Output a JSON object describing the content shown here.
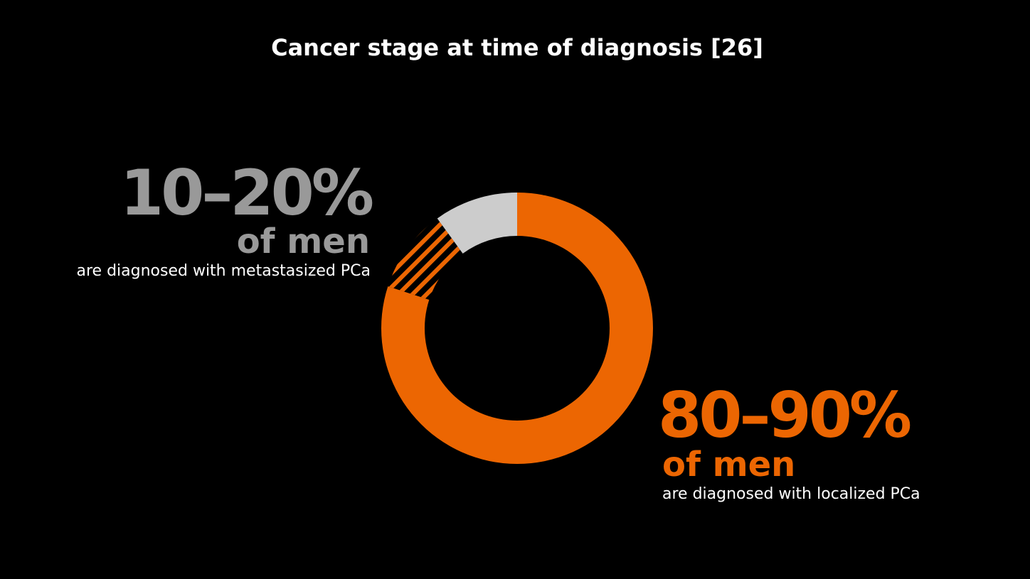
{
  "chart_data": {
    "type": "donut",
    "title": "Cancer stage at time of diagnosis [26]",
    "values": [
      80,
      10,
      10
    ],
    "colors": [
      "#ec6602",
      "#ec6602",
      "#cccccc"
    ],
    "hatched": [
      false,
      true,
      false
    ],
    "annotations": [
      {
        "value": "10–20%",
        "line1": "of men",
        "line2": "are diagnosed with metastasized PCa",
        "color": "#999999"
      },
      {
        "value": "80–90%",
        "line1": "of men",
        "line2": "are diagnosed with localized PCa",
        "color": "#ec6602"
      }
    ]
  }
}
